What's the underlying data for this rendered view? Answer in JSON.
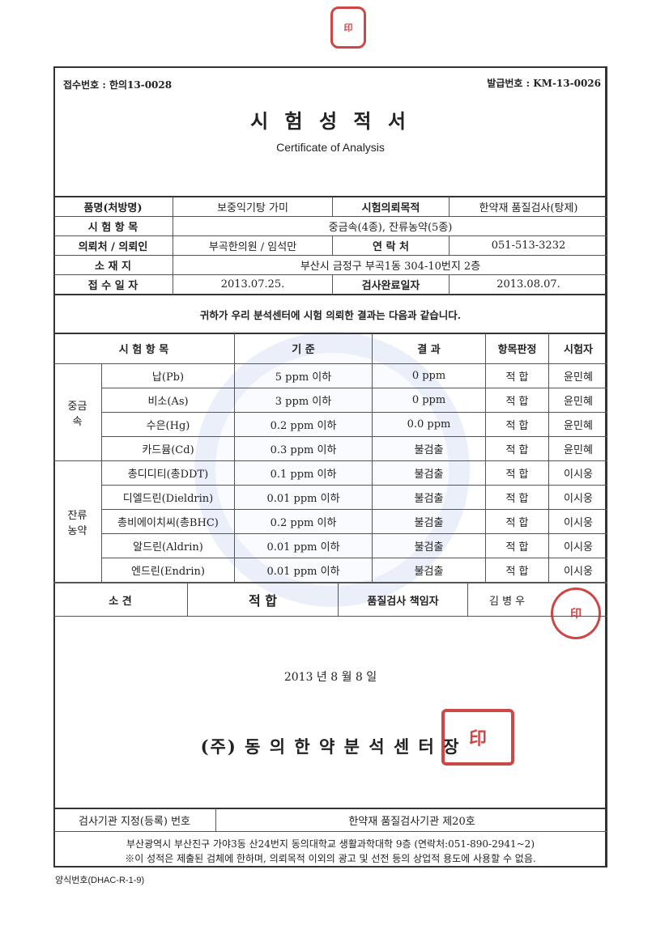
{
  "receipt_no_label": "접수번호 : 한의13-0028",
  "issue_no_label": "발급번호 : KM-13-0026",
  "title": "시 험 성 적 서",
  "subtitle": "Certificate of Analysis",
  "info": {
    "product_label": "품명(처방명)",
    "product": "보중익기탕 가미",
    "purpose_label": "시험의뢰목적",
    "purpose": "한약재 품질검사(탕제)",
    "items_label": "시 험 항 목",
    "items": "중금속(4종), 잔류농약(5종)",
    "client_label": "의뢰처 / 의뢰인",
    "client": "부곡한의원 / 임석만",
    "contact_label": "연 락 처",
    "contact": "051-513-3232",
    "address_label": "소 재 지",
    "address": "부산시 금정구 부곡1동 304-10번지 2층",
    "received_label": "접 수 일 자",
    "received": "2013.07.25.",
    "completed_label": "검사완료일자",
    "completed": "2013.08.07."
  },
  "statement": "귀하가 우리 분석센터에 시험 의뢰한 결과는 다음과 같습니다.",
  "results": {
    "headers": [
      "시 험 항 목",
      "기  준",
      "결  과",
      "항목판정",
      "시험자"
    ],
    "groups": [
      {
        "name": "중금속",
        "rows": [
          {
            "item": "납(Pb)",
            "standard": "5 ppm 이하",
            "result": "0 ppm",
            "judgement": "적  합",
            "tester": "윤민혜"
          },
          {
            "item": "비소(As)",
            "standard": "3 ppm 이하",
            "result": "0 ppm",
            "judgement": "적  합",
            "tester": "윤민혜"
          },
          {
            "item": "수은(Hg)",
            "standard": "0.2 ppm 이하",
            "result": "0.0 ppm",
            "judgement": "적  합",
            "tester": "윤민혜"
          },
          {
            "item": "카드뮴(Cd)",
            "standard": "0.3 ppm 이하",
            "result": "불검출",
            "judgement": "적  합",
            "tester": "윤민혜"
          }
        ]
      },
      {
        "name": "잔류 농약",
        "rows": [
          {
            "item": "총디디티(총DDT)",
            "standard": "0.1 ppm 이하",
            "result": "불검출",
            "judgement": "적  합",
            "tester": "이시웅"
          },
          {
            "item": "디엘드린(Dieldrin)",
            "standard": "0.01 ppm 이하",
            "result": "불검출",
            "judgement": "적  합",
            "tester": "이시웅"
          },
          {
            "item": "총비에이치씨(총BHC)",
            "standard": "0.2 ppm 이하",
            "result": "불검출",
            "judgement": "적  합",
            "tester": "이시웅"
          },
          {
            "item": "알드린(Aldrin)",
            "standard": "0.01 ppm 이하",
            "result": "불검출",
            "judgement": "적  합",
            "tester": "이시웅"
          },
          {
            "item": "엔드린(Endrin)",
            "standard": "0.01 ppm 이하",
            "result": "불검출",
            "judgement": "적  합",
            "tester": "이시웅"
          }
        ]
      }
    ],
    "opinion_label": "소      견",
    "opinion": "적  합",
    "manager_label": "품질검사 책임자",
    "manager": "김 병 우"
  },
  "date": "2013 년   8 월   8 일",
  "company": "(주) 동 의 한 약 분 석 센 터 장",
  "registration_label": "검사기관 지정(등록) 번호",
  "registration": "한약재 품질검사기관 제20호",
  "footer_address": "부산광역시 부산진구 가야3동 산24번지 동의대학교 생활과학대학 9층 (연락처:051-890-2941~2)",
  "footer_note": "※이 성적은 제출된 검체에 한하며, 의뢰목적 이외의 광고 및 선전 등의 상업적 용도에 사용할 수 없음.",
  "form_no": "양식번호(DHAC-R-1-9)",
  "stamp_color": "#c62828"
}
